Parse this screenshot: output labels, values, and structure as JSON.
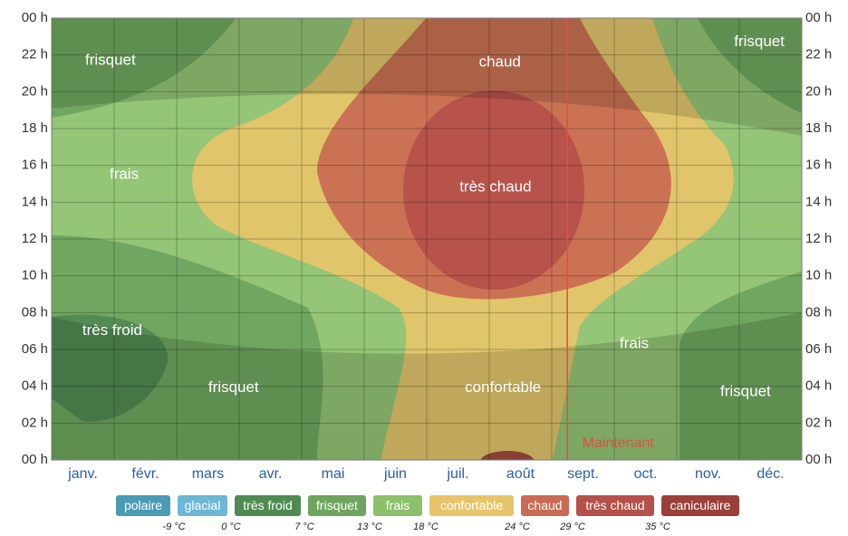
{
  "chart_data": {
    "type": "contour",
    "categories": [
      "janv.",
      "févr.",
      "mars",
      "avr.",
      "mai",
      "juin",
      "juil.",
      "août",
      "sept.",
      "oct.",
      "nov.",
      "déc."
    ],
    "xlim": [
      0,
      12
    ],
    "ylim": [
      0,
      24
    ],
    "yticks": [
      {
        "value": 0,
        "label": "00 h"
      },
      {
        "value": 2,
        "label": "02 h"
      },
      {
        "value": 4,
        "label": "04 h"
      },
      {
        "value": 6,
        "label": "06 h"
      },
      {
        "value": 8,
        "label": "08 h"
      },
      {
        "value": 10,
        "label": "10 h"
      },
      {
        "value": 12,
        "label": "12 h"
      },
      {
        "value": 14,
        "label": "14 h"
      },
      {
        "value": 16,
        "label": "16 h"
      },
      {
        "value": 18,
        "label": "18 h"
      },
      {
        "value": 20,
        "label": "20 h"
      },
      {
        "value": 22,
        "label": "22 h"
      },
      {
        "value": 24,
        "label": "00 h"
      }
    ],
    "grid": true,
    "annotations": [
      {
        "label": "frisquet",
        "x": 0.94,
        "y": 21.7
      },
      {
        "label": "chaud",
        "x": 7.17,
        "y": 21.6
      },
      {
        "label": "frisquet",
        "x": 11.32,
        "y": 22.7
      },
      {
        "label": "frais",
        "x": 1.16,
        "y": 15.5
      },
      {
        "label": "très chaud",
        "x": 7.1,
        "y": 14.8
      },
      {
        "label": "très froid",
        "x": 0.97,
        "y": 7.0
      },
      {
        "label": "frais",
        "x": 9.32,
        "y": 6.3
      },
      {
        "label": "frisquet",
        "x": 2.91,
        "y": 3.9
      },
      {
        "label": "confortable",
        "x": 7.22,
        "y": 3.9
      },
      {
        "label": "frisquet",
        "x": 11.1,
        "y": 3.7
      }
    ],
    "now": {
      "label": "Maintenant",
      "x": 8.25,
      "color": "#e05040"
    },
    "legend": {
      "items": [
        {
          "name": "polaire",
          "color": "#4a9bb5"
        },
        {
          "name": "glacial",
          "color": "#6cb7d6"
        },
        {
          "name": "très froid",
          "color": "#4f8a52"
        },
        {
          "name": "frisquet",
          "color": "#6da45e"
        },
        {
          "name": "frais",
          "color": "#8cc06a"
        },
        {
          "name": "confortable",
          "color": "#e7c46a"
        },
        {
          "name": "chaud",
          "color": "#c96a52"
        },
        {
          "name": "très chaud",
          "color": "#b5504a"
        },
        {
          "name": "caniculaire",
          "color": "#9b3f3a"
        }
      ],
      "thresholds": [
        {
          "value": -9,
          "label": "-9 °C"
        },
        {
          "value": 0,
          "label": "0 °C"
        },
        {
          "value": 7,
          "label": "7 °C"
        },
        {
          "value": 13,
          "label": "13 °C"
        },
        {
          "value": 18,
          "label": "18 °C"
        },
        {
          "value": 24,
          "label": "24 °C"
        },
        {
          "value": 29,
          "label": "29 °C"
        },
        {
          "value": 35,
          "label": "35 °C"
        }
      ]
    }
  }
}
